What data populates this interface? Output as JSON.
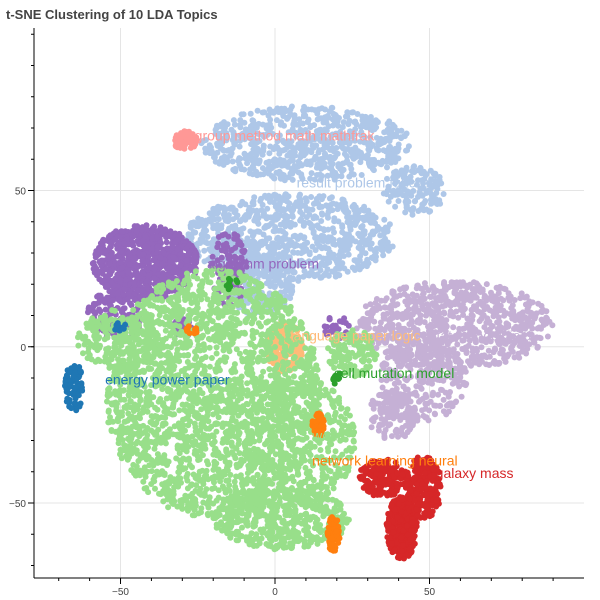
{
  "chart_data": {
    "type": "scatter",
    "title": "t-SNE Clustering of 10 LDA Topics",
    "xlabel": "",
    "ylabel": "",
    "xlim": [
      -78,
      100
    ],
    "ylim": [
      -74,
      102
    ],
    "x_ticks": [
      -50,
      0,
      50
    ],
    "y_ticks": [
      50,
      0,
      -50
    ],
    "x_tick_labels": [
      "−50",
      "0",
      "50"
    ],
    "y_tick_labels": [
      "50",
      "0",
      "−50"
    ],
    "grid": true,
    "legend": "none",
    "series": [
      {
        "color": "#aec7e8",
        "label": "result problem function",
        "label_at": [
          7,
          51
        ],
        "regions": [
          [
            10,
            65,
            34,
            12,
            700
          ],
          [
            5,
            35,
            34,
            14,
            800
          ],
          [
            -5,
            22,
            12,
            12,
            260
          ],
          [
            45,
            50,
            10,
            8,
            140
          ]
        ]
      },
      {
        "color": "#ff9896",
        "label": "group method math mathfrak",
        "label_at": [
          -26,
          66
        ],
        "regions": [
          [
            -29,
            66,
            4,
            3,
            70
          ]
        ]
      },
      {
        "color": "#9467bd",
        "label": "algorithm problem",
        "label_at": [
          -22,
          25
        ],
        "regions": [
          [
            -42,
            27,
            17,
            12,
            800
          ],
          [
            -52,
            10,
            9,
            8,
            150
          ],
          [
            -15,
            25,
            6,
            12,
            120
          ],
          [
            -30,
            6,
            3,
            3,
            40
          ],
          [
            20,
            6,
            4,
            4,
            30
          ]
        ]
      },
      {
        "color": "#c5b0d5",
        "label": "state model field",
        "label_at": [
          50,
          2
        ],
        "regions": [
          [
            58,
            7,
            32,
            14,
            800
          ],
          [
            48,
            -10,
            14,
            14,
            260
          ],
          [
            38,
            -22,
            8,
            8,
            120
          ]
        ]
      },
      {
        "color": "#ffbb78",
        "label": "language paper logic",
        "label_at": [
          5,
          2
        ],
        "regions": [
          [
            3,
            0,
            6,
            8,
            240
          ]
        ]
      },
      {
        "color": "#98df8a",
        "label": "",
        "label_at": null,
        "regions": [
          [
            -20,
            -15,
            35,
            40,
            2200
          ],
          [
            8,
            -30,
            18,
            20,
            400
          ],
          [
            2,
            -55,
            22,
            10,
            500
          ],
          [
            -50,
            2,
            14,
            10,
            200
          ],
          [
            25,
            -2,
            8,
            8,
            120
          ]
        ]
      },
      {
        "color": "#1f77b4",
        "label": "energy power paper",
        "label_at": [
          -55,
          -12
        ],
        "regions": [
          [
            -65,
            -13,
            3,
            8,
            90
          ],
          [
            -50,
            6,
            2,
            2,
            10
          ]
        ]
      },
      {
        "color": "#2ca02c",
        "label": "cell mutation model",
        "label_at": [
          19,
          -10
        ],
        "regions": [
          [
            20,
            -10,
            2,
            2,
            12
          ],
          [
            -14,
            20,
            2,
            2,
            8
          ]
        ]
      },
      {
        "color": "#ff7f0e",
        "label": "network learning neural",
        "label_at": [
          12,
          -38
        ],
        "regions": [
          [
            14,
            -25,
            2,
            4,
            60
          ],
          [
            19,
            -60,
            2,
            6,
            60
          ],
          [
            -27,
            5,
            2,
            2,
            10
          ]
        ]
      },
      {
        "color": "#d62728",
        "label": "galaxy mass",
        "label_at": [
          52,
          -42
        ],
        "regions": [
          [
            41,
            -58,
            5,
            10,
            300
          ],
          [
            35,
            -42,
            8,
            6,
            200
          ],
          [
            48,
            -45,
            6,
            10,
            200
          ]
        ]
      },
      {
        "color": "#98df8a",
        "label": "work",
        "label_at": [
          12,
          -30
        ],
        "regions": []
      }
    ]
  }
}
